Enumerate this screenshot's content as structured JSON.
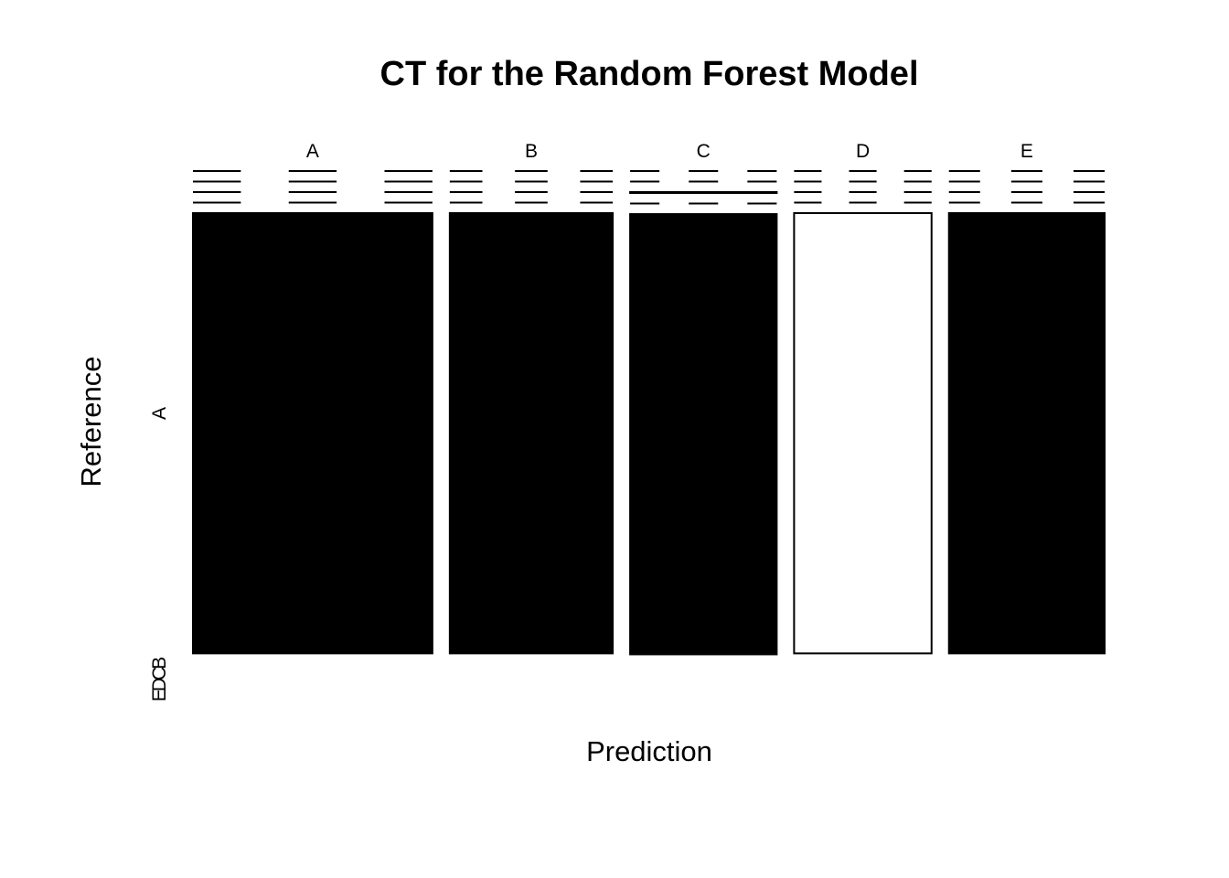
{
  "chart_data": {
    "type": "mosaic",
    "title": "CT for the Random Forest Model",
    "xlabel": "Prediction",
    "ylabel": "Reference",
    "categories": [
      "A",
      "B",
      "C",
      "D",
      "E"
    ],
    "reference_tick_labels": [
      "A",
      "EDCB"
    ],
    "column_proportions": [
      0.263,
      0.179,
      0.161,
      0.151,
      0.171
    ],
    "cells": {
      "A": {
        "A": 0.91,
        "B": 0.0,
        "C": 0.0,
        "D": 0.0,
        "E": 0.0
      },
      "B": {
        "A": 0.0,
        "B": 0.91,
        "C": 0.0,
        "D": 0.0,
        "E": 0.0
      },
      "C": {
        "A": 0.0,
        "B": 0.0,
        "C": 0.91,
        "D": 0.002,
        "E": 0.0
      },
      "D": {
        "A": 0.0,
        "B": 0.0,
        "C": 0.0,
        "D": 0.91,
        "E": 0.0
      },
      "E": {
        "A": 0.0,
        "B": 0.0,
        "C": 0.0,
        "D": 0.0,
        "E": 0.91
      }
    },
    "colors": {
      "filled": "#000000",
      "unfilled": "#ffffff",
      "border": "#000000"
    }
  }
}
